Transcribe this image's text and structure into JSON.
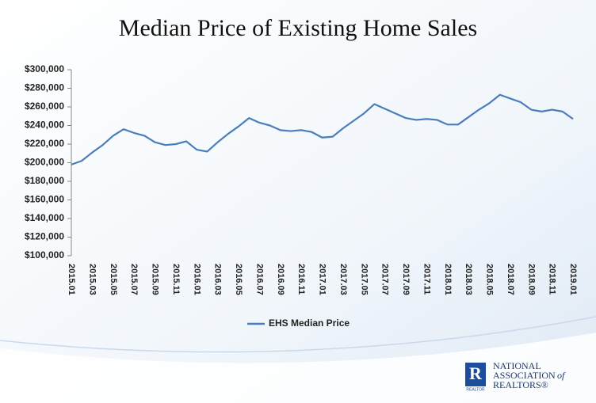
{
  "chart_data": {
    "type": "line",
    "title": "Median Price of Existing Home Sales",
    "categories": [
      "2015.01",
      null,
      "2015.03",
      null,
      "2015.05",
      null,
      "2015.07",
      null,
      "2015.09",
      null,
      "2015.11",
      null,
      "2016.01",
      null,
      "2016.03",
      null,
      "2016.05",
      null,
      "2016.07",
      null,
      "2016.09",
      null,
      "2016.11",
      null,
      "2017.01",
      null,
      "2017.03",
      null,
      "2017.05",
      null,
      "2017.07",
      null,
      "2017.09",
      null,
      "2017.11",
      null,
      "2018.01",
      null,
      "2018.03",
      null,
      "2018.05",
      null,
      "2018.07",
      null,
      "2018.09",
      null,
      "2018.11",
      null,
      "2019.01"
    ],
    "series": [
      {
        "name": "EHS Median Price",
        "color": "#4a7ebb",
        "values": [
          198000,
          202000,
          211000,
          219000,
          229000,
          236000,
          232000,
          229000,
          222000,
          219000,
          220000,
          223000,
          214000,
          212000,
          222000,
          231000,
          239000,
          248000,
          243000,
          240000,
          235000,
          234000,
          235000,
          233000,
          227000,
          228000,
          237000,
          245000,
          253000,
          263000,
          258000,
          253000,
          248000,
          246000,
          247000,
          246000,
          241000,
          241000,
          249000,
          257000,
          264000,
          273000,
          269000,
          265000,
          257000,
          255000,
          257000,
          255000,
          247000
        ]
      }
    ],
    "ylim": [
      100000,
      300000
    ],
    "yticks": [
      {
        "value": 100000,
        "label": "$100,000"
      },
      {
        "value": 120000,
        "label": "$120,000"
      },
      {
        "value": 140000,
        "label": "$140,000"
      },
      {
        "value": 160000,
        "label": "$160,000"
      },
      {
        "value": 180000,
        "label": "$180,000"
      },
      {
        "value": 200000,
        "label": "$200,000"
      },
      {
        "value": 220000,
        "label": "$220,000"
      },
      {
        "value": 240000,
        "label": "$240,000"
      },
      {
        "value": 260000,
        "label": "$260,000"
      },
      {
        "value": 280000,
        "label": "$280,000"
      },
      {
        "value": 300000,
        "label": "$300,000"
      }
    ],
    "grid": false,
    "legend": "bottom"
  },
  "logo": {
    "lines": [
      "NATIONAL",
      "ASSOCIATION",
      "of",
      "REALTORS®"
    ],
    "mark": "REALTOR"
  }
}
